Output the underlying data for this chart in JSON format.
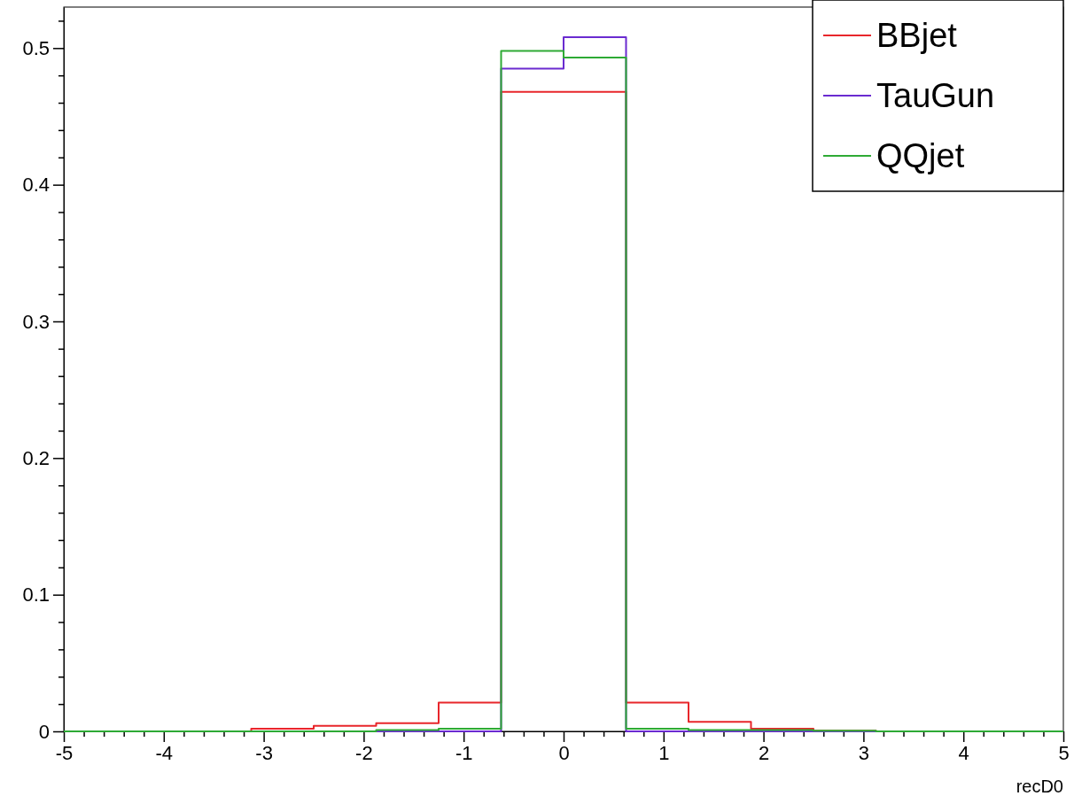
{
  "chart_data": {
    "type": "histogram",
    "xlabel": "recD0",
    "bins": [
      -5,
      -4.375,
      -3.75,
      -3.125,
      -2.5,
      -1.875,
      -1.25,
      -0.625,
      0,
      0.625,
      1.25,
      1.875,
      2.5,
      3.125,
      3.75,
      4.375,
      5
    ],
    "series": [
      {
        "name": "BBjet",
        "color": "#e8262b",
        "values": [
          0,
          0,
          0,
          0.002,
          0.004,
          0.006,
          0.021,
          0.468,
          0.468,
          0.021,
          0.007,
          0.002,
          0.0005,
          0,
          0,
          0
        ]
      },
      {
        "name": "TauGun",
        "color": "#6a2bd0",
        "values": [
          0,
          0,
          0,
          0,
          0,
          0,
          0,
          0.485,
          0.508,
          0,
          0,
          0,
          0,
          0,
          0,
          0
        ]
      },
      {
        "name": "QQjet",
        "color": "#2eaa35",
        "values": [
          0,
          0,
          0,
          0,
          0,
          0.001,
          0.002,
          0.498,
          0.493,
          0.002,
          0.001,
          0.001,
          0.0005,
          0,
          0,
          0
        ]
      }
    ],
    "xlim": [
      -5,
      5
    ],
    "ylim": [
      0,
      0.53
    ],
    "xticks": [
      -5,
      {
        "value": -4.8,
        "label": null
      },
      {
        "value": -4.6,
        "label": null
      },
      {
        "value": -4.4,
        "label": null
      },
      {
        "value": -4.2,
        "label": null
      },
      -4,
      {
        "value": -3.8,
        "label": null
      },
      {
        "value": -3.6,
        "label": null
      },
      {
        "value": -3.4,
        "label": null
      },
      {
        "value": -3.2,
        "label": null
      },
      -3,
      {
        "value": -2.8,
        "label": null
      },
      {
        "value": -2.6,
        "label": null
      },
      {
        "value": -2.4,
        "label": null
      },
      {
        "value": -2.2,
        "label": null
      },
      -2,
      {
        "value": -1.8,
        "label": null
      },
      {
        "value": -1.6,
        "label": null
      },
      {
        "value": -1.4,
        "label": null
      },
      {
        "value": -1.2,
        "label": null
      },
      -1,
      {
        "value": -0.8,
        "label": null
      },
      {
        "value": -0.6,
        "label": null
      },
      {
        "value": -0.4,
        "label": null
      },
      {
        "value": -0.2,
        "label": null
      },
      0,
      {
        "value": 0.2,
        "label": null
      },
      {
        "value": 0.4,
        "label": null
      },
      {
        "value": 0.6,
        "label": null
      },
      {
        "value": 0.8,
        "label": null
      },
      1,
      {
        "value": 1.2,
        "label": null
      },
      {
        "value": 1.4,
        "label": null
      },
      {
        "value": 1.6,
        "label": null
      },
      {
        "value": 1.8,
        "label": null
      },
      2,
      {
        "value": 2.2,
        "label": null
      },
      {
        "value": 2.4,
        "label": null
      },
      {
        "value": 2.6,
        "label": null
      },
      {
        "value": 2.8,
        "label": null
      },
      3,
      {
        "value": 3.2,
        "label": null
      },
      {
        "value": 3.4,
        "label": null
      },
      {
        "value": 3.6,
        "label": null
      },
      {
        "value": 3.8,
        "label": null
      },
      4,
      {
        "value": 4.2,
        "label": null
      },
      {
        "value": 4.4,
        "label": null
      },
      {
        "value": 4.6,
        "label": null
      },
      {
        "value": 4.8,
        "label": null
      },
      5
    ],
    "yticks": [
      0,
      {
        "value": 0.02,
        "label": null
      },
      {
        "value": 0.04,
        "label": null
      },
      {
        "value": 0.06,
        "label": null
      },
      {
        "value": 0.08,
        "label": null
      },
      0.1,
      {
        "value": 0.12,
        "label": null
      },
      {
        "value": 0.14,
        "label": null
      },
      {
        "value": 0.16,
        "label": null
      },
      {
        "value": 0.18,
        "label": null
      },
      0.2,
      {
        "value": 0.22,
        "label": null
      },
      {
        "value": 0.24,
        "label": null
      },
      {
        "value": 0.26,
        "label": null
      },
      {
        "value": 0.28,
        "label": null
      },
      0.3,
      {
        "value": 0.32,
        "label": null
      },
      {
        "value": 0.34,
        "label": null
      },
      {
        "value": 0.36,
        "label": null
      },
      {
        "value": 0.38,
        "label": null
      },
      0.4,
      {
        "value": 0.42,
        "label": null
      },
      {
        "value": 0.44,
        "label": null
      },
      {
        "value": 0.46,
        "label": null
      },
      {
        "value": 0.48,
        "label": null
      },
      0.5,
      {
        "value": 0.52,
        "label": null
      }
    ],
    "legend": "top right",
    "grid": false
  }
}
